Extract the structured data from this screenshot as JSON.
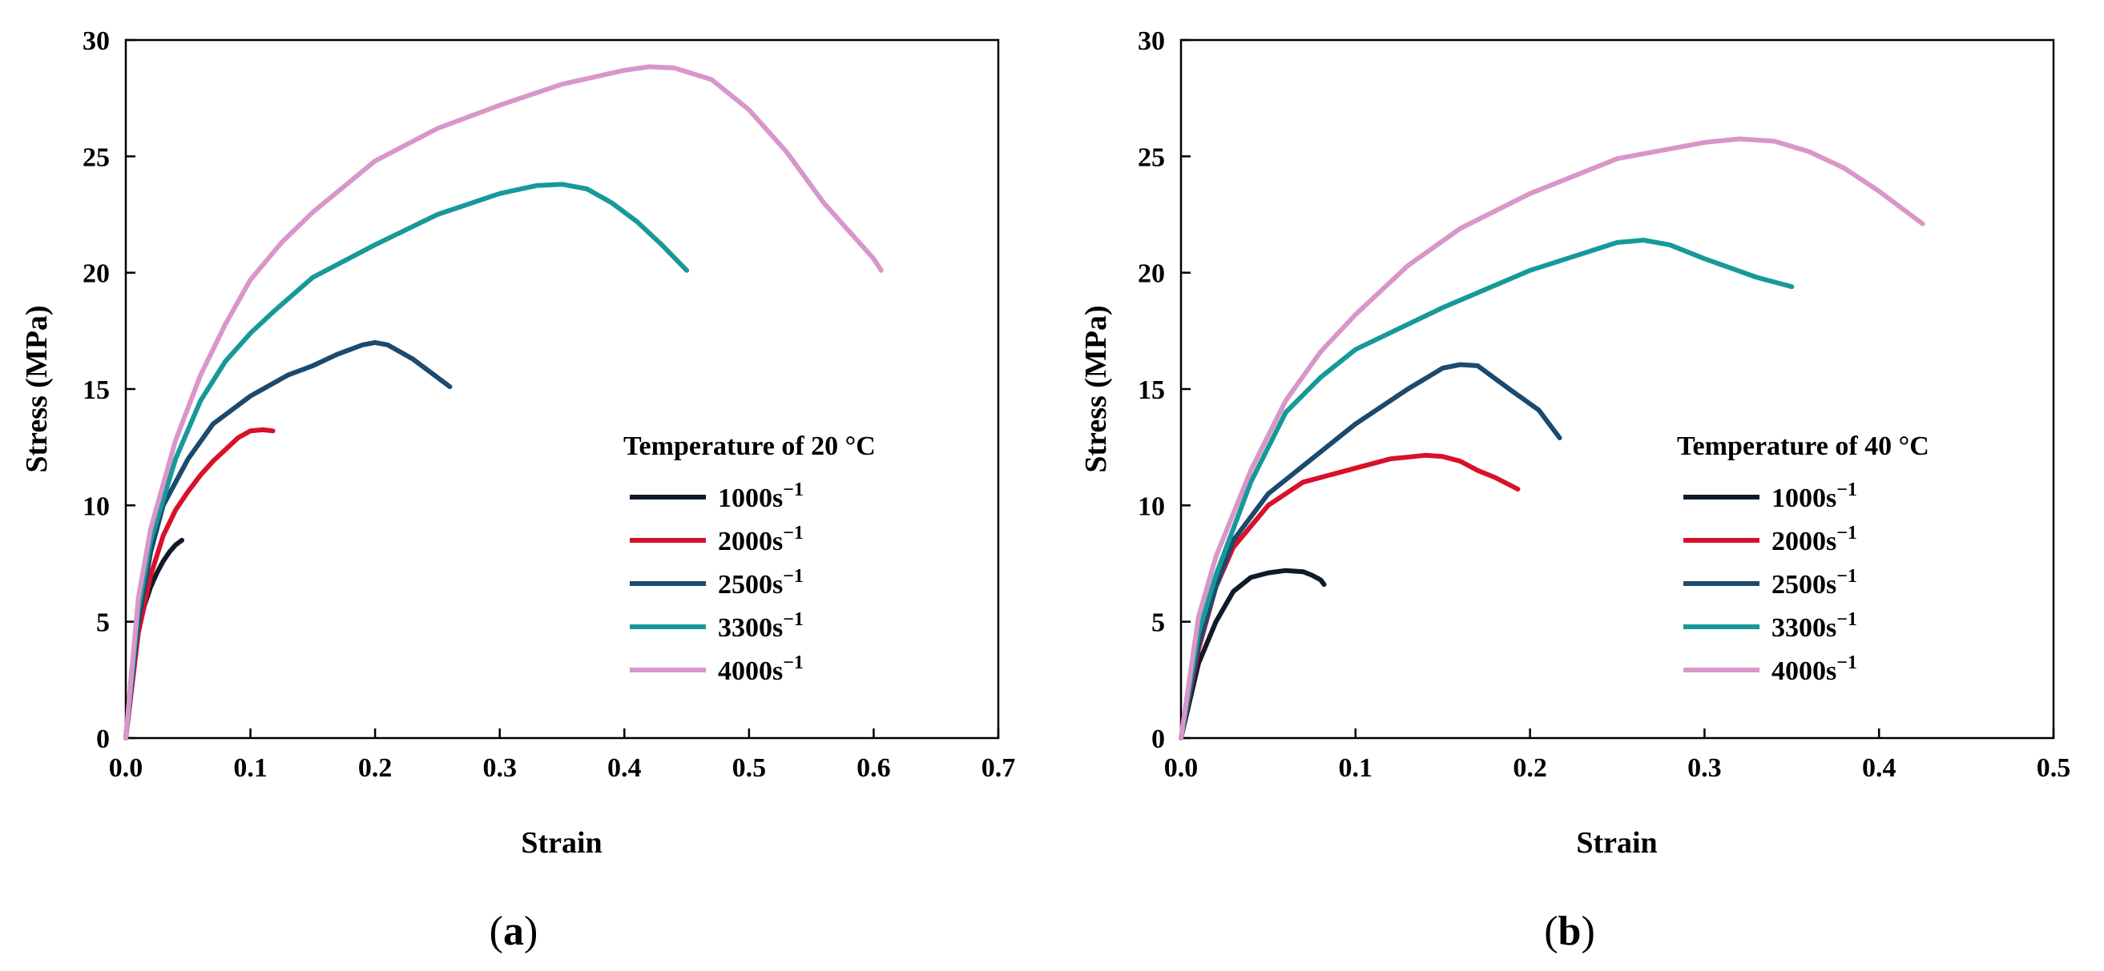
{
  "colors": {
    "1000": "#0f1a2a",
    "2000": "#d9102a",
    "2500": "#1c4a6e",
    "3300": "#17999a",
    "4000": "#d996c9"
  },
  "chart_data": [
    {
      "panel": "(a)",
      "panel_open": "(",
      "panel_letter": "a",
      "panel_close": ")",
      "type": "line",
      "xlabel": "Strain",
      "ylabel": "Stress (MPa)",
      "xlim": [
        0,
        0.7
      ],
      "ylim": [
        0,
        30
      ],
      "xticks": [
        0.0,
        0.1,
        0.2,
        0.3,
        0.4,
        0.5,
        0.6,
        0.7
      ],
      "xtick_labels": [
        "0.0",
        "0.1",
        "0.2",
        "0.3",
        "0.4",
        "0.5",
        "0.6",
        "0.7"
      ],
      "yticks": [
        0,
        5,
        10,
        15,
        20,
        25,
        30
      ],
      "ytick_labels": [
        "0",
        "5",
        "10",
        "15",
        "20",
        "25",
        "30"
      ],
      "legend_title": "Temperature of 20 °C",
      "legend_position": "center-right",
      "series": [
        {
          "name": "1000s",
          "key": "1000",
          "x": [
            0,
            0.005,
            0.01,
            0.015,
            0.02,
            0.025,
            0.03,
            0.035,
            0.04,
            0.045
          ],
          "y": [
            0,
            3.0,
            4.6,
            5.7,
            6.5,
            7.1,
            7.6,
            8.0,
            8.3,
            8.5
          ]
        },
        {
          "name": "2000s",
          "key": "2000",
          "x": [
            0,
            0.01,
            0.02,
            0.03,
            0.04,
            0.05,
            0.06,
            0.07,
            0.08,
            0.09,
            0.1,
            0.11,
            0.118
          ],
          "y": [
            0,
            4.5,
            7.0,
            8.7,
            9.8,
            10.6,
            11.3,
            11.9,
            12.4,
            12.9,
            13.2,
            13.25,
            13.2
          ]
        },
        {
          "name": "2500s",
          "key": "2500",
          "x": [
            0,
            0.01,
            0.02,
            0.03,
            0.05,
            0.07,
            0.1,
            0.13,
            0.15,
            0.17,
            0.19,
            0.2,
            0.21,
            0.23,
            0.245,
            0.26
          ],
          "y": [
            0,
            5.0,
            8.0,
            10.0,
            12.0,
            13.5,
            14.7,
            15.6,
            16.0,
            16.5,
            16.9,
            17.0,
            16.9,
            16.3,
            15.7,
            15.1
          ]
        },
        {
          "name": "3300s",
          "key": "3300",
          "x": [
            0,
            0.01,
            0.02,
            0.04,
            0.06,
            0.08,
            0.1,
            0.12,
            0.15,
            0.2,
            0.25,
            0.3,
            0.33,
            0.35,
            0.37,
            0.39,
            0.41,
            0.43,
            0.45
          ],
          "y": [
            0,
            5.5,
            8.5,
            12.0,
            14.5,
            16.2,
            17.4,
            18.4,
            19.8,
            21.2,
            22.5,
            23.4,
            23.75,
            23.8,
            23.6,
            23.0,
            22.2,
            21.2,
            20.1
          ]
        },
        {
          "name": "4000s",
          "key": "4000",
          "x": [
            0,
            0.01,
            0.02,
            0.04,
            0.06,
            0.08,
            0.1,
            0.125,
            0.15,
            0.2,
            0.25,
            0.3,
            0.35,
            0.4,
            0.42,
            0.44,
            0.47,
            0.5,
            0.53,
            0.56,
            0.6,
            0.606
          ],
          "y": [
            0,
            6.0,
            9.0,
            12.8,
            15.6,
            17.8,
            19.7,
            21.3,
            22.6,
            24.8,
            26.2,
            27.2,
            28.1,
            28.7,
            28.85,
            28.8,
            28.3,
            27.0,
            25.2,
            23.0,
            20.6,
            20.1
          ]
        }
      ]
    },
    {
      "panel": "(b)",
      "panel_open": "(",
      "panel_letter": "b",
      "panel_close": ")",
      "type": "line",
      "xlabel": "Strain",
      "ylabel": "Stress (MPa)",
      "xlim": [
        0,
        0.5
      ],
      "ylim": [
        0,
        30
      ],
      "xticks": [
        0.0,
        0.1,
        0.2,
        0.3,
        0.4,
        0.5
      ],
      "xtick_labels": [
        "0.0",
        "0.1",
        "0.2",
        "0.3",
        "0.4",
        "0.5"
      ],
      "yticks": [
        0,
        5,
        10,
        15,
        20,
        25,
        30
      ],
      "ytick_labels": [
        "0",
        "5",
        "10",
        "15",
        "20",
        "25",
        "30"
      ],
      "legend_title": "Temperature of 40 °C",
      "legend_position": "center-right",
      "series": [
        {
          "name": "1000s",
          "key": "1000",
          "x": [
            0,
            0.01,
            0.02,
            0.03,
            0.04,
            0.05,
            0.06,
            0.07,
            0.075,
            0.08,
            0.082
          ],
          "y": [
            0,
            3.2,
            5.0,
            6.3,
            6.9,
            7.1,
            7.2,
            7.15,
            7.0,
            6.8,
            6.6
          ]
        },
        {
          "name": "2000s",
          "key": "2000",
          "x": [
            0,
            0.01,
            0.02,
            0.03,
            0.05,
            0.07,
            0.1,
            0.12,
            0.14,
            0.15,
            0.16,
            0.17,
            0.18,
            0.193
          ],
          "y": [
            0,
            3.8,
            6.5,
            8.2,
            10.0,
            11.0,
            11.6,
            12.0,
            12.15,
            12.1,
            11.9,
            11.5,
            11.2,
            10.7
          ]
        },
        {
          "name": "2500s",
          "key": "2500",
          "x": [
            0,
            0.01,
            0.02,
            0.03,
            0.05,
            0.07,
            0.1,
            0.13,
            0.15,
            0.16,
            0.17,
            0.19,
            0.205,
            0.217
          ],
          "y": [
            0,
            4.0,
            6.5,
            8.5,
            10.5,
            11.7,
            13.5,
            15.0,
            15.9,
            16.05,
            16.0,
            14.9,
            14.1,
            12.9
          ]
        },
        {
          "name": "3300s",
          "key": "3300",
          "x": [
            0,
            0.01,
            0.02,
            0.04,
            0.06,
            0.08,
            0.1,
            0.15,
            0.2,
            0.25,
            0.265,
            0.28,
            0.3,
            0.33,
            0.35
          ],
          "y": [
            0,
            4.5,
            7.0,
            11.0,
            14.0,
            15.5,
            16.7,
            18.5,
            20.1,
            21.3,
            21.4,
            21.2,
            20.6,
            19.8,
            19.4
          ]
        },
        {
          "name": "4000s",
          "key": "4000",
          "x": [
            0,
            0.01,
            0.02,
            0.04,
            0.06,
            0.08,
            0.1,
            0.13,
            0.16,
            0.2,
            0.25,
            0.3,
            0.32,
            0.34,
            0.36,
            0.38,
            0.4,
            0.425
          ],
          "y": [
            0,
            5.2,
            7.8,
            11.5,
            14.5,
            16.6,
            18.2,
            20.3,
            21.9,
            23.4,
            24.9,
            25.6,
            25.75,
            25.65,
            25.2,
            24.5,
            23.5,
            22.1
          ]
        }
      ]
    }
  ]
}
